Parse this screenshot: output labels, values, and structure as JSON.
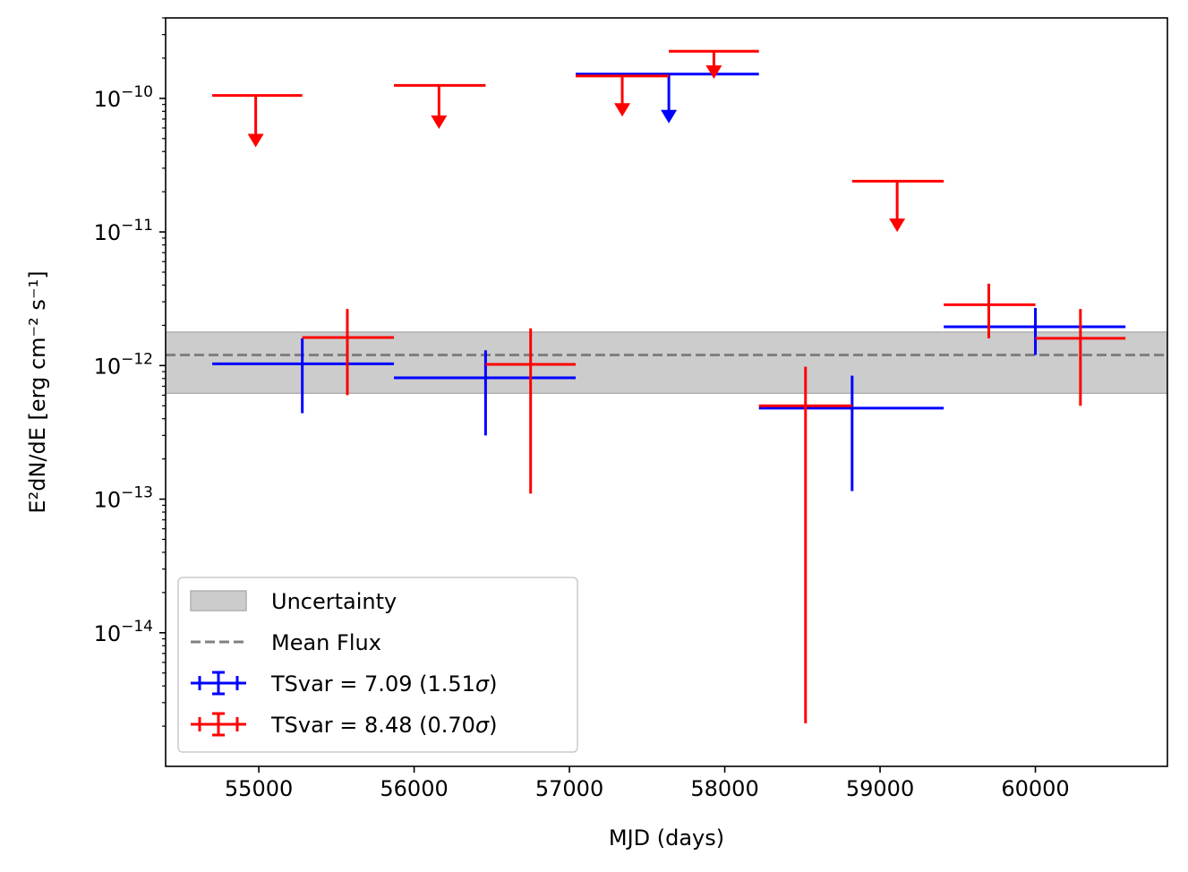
{
  "chart_data": {
    "type": "scatter",
    "title": "",
    "xlabel": "MJD (days)",
    "ylabel": "E²dN/dE [erg cm⁻² s⁻¹]",
    "xlim": [
      54400,
      60850
    ],
    "ylim": [
      1e-15,
      4e-10
    ],
    "yscale": "log",
    "grid": false,
    "legend_position": "lower-left",
    "x_ticks": [
      {
        "value": 55000,
        "label": "55000"
      },
      {
        "value": 56000,
        "label": "56000"
      },
      {
        "value": 57000,
        "label": "57000"
      },
      {
        "value": 58000,
        "label": "58000"
      },
      {
        "value": 59000,
        "label": "59000"
      },
      {
        "value": 60000,
        "label": "60000"
      }
    ],
    "y_ticks": [
      {
        "value": 1e-10,
        "base": "10",
        "exp": "−10"
      },
      {
        "value": 1e-11,
        "base": "10",
        "exp": "−11"
      },
      {
        "value": 1e-12,
        "base": "10",
        "exp": "−12"
      },
      {
        "value": 1e-13,
        "base": "10",
        "exp": "−13"
      },
      {
        "value": 1e-14,
        "base": "10",
        "exp": "−14"
      }
    ],
    "mean_flux": 1.2e-12,
    "uncertainty_band": [
      6.2e-13,
      1.78e-12
    ],
    "legend": {
      "uncertainty": "Uncertainty",
      "mean": "Mean Flux",
      "blue_prefix": "TSvar = 7.09 (1.51",
      "red_prefix": "TSvar = 8.48 (0.70",
      "sigma": "σ",
      "suffix": ")"
    },
    "series": [
      {
        "name": "TSvar = 7.09 (1.51σ)",
        "color": "#0000ff",
        "points": [
          {
            "x": 55280,
            "xlo": 54700,
            "xhi": 55870,
            "y": 1.03e-12,
            "ylo": 4.4e-13,
            "yhi": 1.6e-12
          },
          {
            "x": 56460,
            "xlo": 55870,
            "xhi": 57040,
            "y": 8.1e-13,
            "ylo": 3e-13,
            "yhi": 1.3e-12
          },
          {
            "x": 58820,
            "xlo": 58220,
            "xhi": 59410,
            "y": 4.8e-13,
            "ylo": 1.15e-13,
            "yhi": 8.4e-13
          },
          {
            "x": 60000,
            "xlo": 59410,
            "xhi": 60580,
            "y": 1.95e-12,
            "ylo": 1.2e-12,
            "yhi": 2.7e-12
          }
        ],
        "upper_limits": [
          {
            "x": 57640,
            "xlo": 57040,
            "xhi": 58220,
            "y": 1.52e-10,
            "arrow_to": 6.5e-11
          }
        ]
      },
      {
        "name": "TSvar = 8.48 (0.70σ)",
        "color": "#ff0000",
        "points": [
          {
            "x": 55570,
            "xlo": 55280,
            "xhi": 55870,
            "y": 1.62e-12,
            "ylo": 6e-13,
            "yhi": 2.65e-12
          },
          {
            "x": 56750,
            "xlo": 56460,
            "xhi": 57040,
            "y": 1.02e-12,
            "ylo": 1.1e-13,
            "yhi": 1.9e-12
          },
          {
            "x": 58520,
            "xlo": 58220,
            "xhi": 58820,
            "y": 5e-13,
            "ylo": 2.1e-15,
            "yhi": 9.8e-13
          },
          {
            "x": 59700,
            "xlo": 59410,
            "xhi": 60000,
            "y": 2.85e-12,
            "ylo": 1.6e-12,
            "yhi": 4.1e-12
          },
          {
            "x": 60290,
            "xlo": 60000,
            "xhi": 60580,
            "y": 1.6e-12,
            "ylo": 5e-13,
            "yhi": 2.65e-12
          }
        ],
        "upper_limits": [
          {
            "x": 54980,
            "xlo": 54700,
            "xhi": 55280,
            "y": 1.05e-10,
            "arrow_to": 4.3e-11
          },
          {
            "x": 56160,
            "xlo": 55870,
            "xhi": 56460,
            "y": 1.25e-10,
            "arrow_to": 5.9e-11
          },
          {
            "x": 57340,
            "xlo": 57040,
            "xhi": 57640,
            "y": 1.47e-10,
            "arrow_to": 7.3e-11
          },
          {
            "x": 57930,
            "xlo": 57640,
            "xhi": 58220,
            "y": 2.25e-10,
            "arrow_to": 1.4e-10
          },
          {
            "x": 59110,
            "xlo": 58820,
            "xhi": 59410,
            "y": 2.4e-11,
            "arrow_to": 1e-11
          }
        ]
      }
    ]
  }
}
